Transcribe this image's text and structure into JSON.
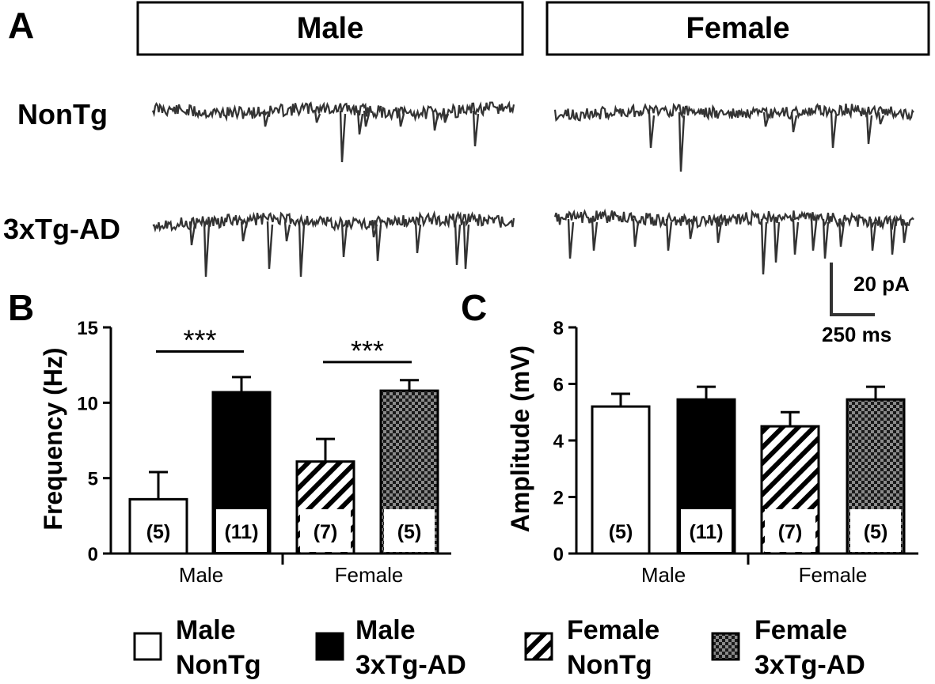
{
  "panel_a": {
    "letter": "A",
    "sex_headers": [
      "Male",
      "Female"
    ],
    "row_labels": [
      "NonTg",
      "3xTg-AD"
    ],
    "scale_bar": {
      "amplitude": "20 pA",
      "time": "250 ms"
    }
  },
  "legend": [
    {
      "line1": "Male",
      "line2": "NonTg",
      "pattern": "white"
    },
    {
      "line1": "Male",
      "line2": "3xTg-AD",
      "pattern": "black"
    },
    {
      "line1": "Female",
      "line2": "NonTg",
      "pattern": "hatch"
    },
    {
      "line1": "Female",
      "line2": "3xTg-AD",
      "pattern": "checker"
    }
  ],
  "colors": {
    "ink": "#000000",
    "trace": "#333333",
    "checker_dark": "#1a1a1a",
    "checker_light": "#8a8a8a",
    "background": "#ffffff"
  },
  "chart_data": [
    {
      "panel_letter": "B",
      "type": "bar",
      "ylabel": "Frequency (Hz)",
      "xlabel": "",
      "ylim": [
        0,
        15
      ],
      "yticks": [
        0,
        5,
        10,
        15
      ],
      "group_labels": [
        "Male",
        "Female"
      ],
      "series": [
        {
          "name": "Male NonTg",
          "pattern": "white",
          "group": 0,
          "value": 3.6,
          "error": 1.8,
          "n": "(5)"
        },
        {
          "name": "Male 3xTg-AD",
          "pattern": "black",
          "group": 0,
          "value": 10.7,
          "error": 1.0,
          "n": "(11)"
        },
        {
          "name": "Female NonTg",
          "pattern": "hatch",
          "group": 1,
          "value": 6.1,
          "error": 1.5,
          "n": "(7)"
        },
        {
          "name": "Female 3xTg-AD",
          "pattern": "checker",
          "group": 1,
          "value": 10.8,
          "error": 0.7,
          "n": "(5)"
        }
      ],
      "significance": [
        {
          "from": 0,
          "to": 1,
          "label": "***",
          "y": 13.4
        },
        {
          "from": 2,
          "to": 3,
          "label": "***",
          "y": 12.7
        }
      ]
    },
    {
      "panel_letter": "C",
      "type": "bar",
      "ylabel": "Amplitude (mV)",
      "xlabel": "",
      "ylim": [
        0,
        8
      ],
      "yticks": [
        0,
        2,
        4,
        6,
        8
      ],
      "group_labels": [
        "Male",
        "Female"
      ],
      "series": [
        {
          "name": "Male NonTg",
          "pattern": "white",
          "group": 0,
          "value": 5.2,
          "error": 0.45,
          "n": "(5)"
        },
        {
          "name": "Male 3xTg-AD",
          "pattern": "black",
          "group": 0,
          "value": 5.45,
          "error": 0.45,
          "n": "(11)"
        },
        {
          "name": "Female NonTg",
          "pattern": "hatch",
          "group": 1,
          "value": 4.5,
          "error": 0.5,
          "n": "(7)"
        },
        {
          "name": "Female 3xTg-AD",
          "pattern": "checker",
          "group": 1,
          "value": 5.45,
          "error": 0.45,
          "n": "(5)"
        }
      ],
      "significance": []
    }
  ]
}
